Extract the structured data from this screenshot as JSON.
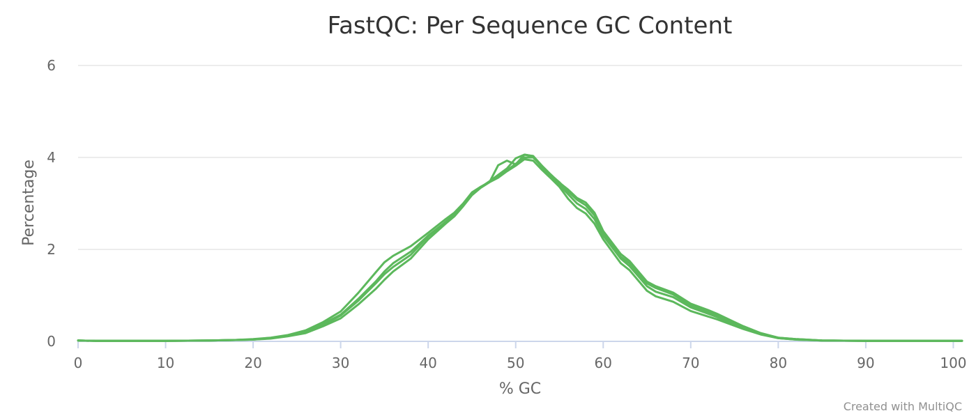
{
  "chart_data": {
    "type": "line",
    "title": "FastQC: Per Sequence GC Content",
    "xlabel": "% GC",
    "ylabel": "Percentage",
    "xlim": [
      0,
      101
    ],
    "ylim": [
      0,
      6
    ],
    "x_ticks": [
      0,
      10,
      20,
      30,
      40,
      50,
      60,
      70,
      80,
      90,
      100
    ],
    "y_ticks": [
      0,
      2,
      4,
      6
    ],
    "grid": true,
    "legend": "none",
    "line_color": "#5cb85c",
    "credit": "Created with MultiQC",
    "series": [
      {
        "x": [
          0,
          2,
          5,
          10,
          15,
          18,
          20,
          22,
          24,
          26,
          28,
          30,
          32,
          34,
          35,
          36,
          38,
          40,
          42,
          43,
          44,
          45,
          46,
          47,
          48,
          49,
          50,
          51,
          52,
          53,
          54,
          55,
          56,
          57,
          58,
          59,
          60,
          62,
          63,
          65,
          66,
          68,
          70,
          72,
          73,
          75,
          76,
          78,
          80,
          82,
          85,
          90,
          95,
          100,
          101
        ],
        "y": [
          0.02,
          0.01,
          0.01,
          0.01,
          0.02,
          0.03,
          0.05,
          0.08,
          0.14,
          0.24,
          0.42,
          0.65,
          1.05,
          1.5,
          1.72,
          1.86,
          2.07,
          2.36,
          2.66,
          2.8,
          3.0,
          3.24,
          3.36,
          3.46,
          3.83,
          3.93,
          3.85,
          4.06,
          4.03,
          3.82,
          3.63,
          3.45,
          3.3,
          3.12,
          3.02,
          2.8,
          2.4,
          1.9,
          1.75,
          1.3,
          1.2,
          1.06,
          0.82,
          0.68,
          0.6,
          0.42,
          0.33,
          0.18,
          0.08,
          0.05,
          0.02,
          0.01,
          0.01,
          0.01,
          0.01
        ]
      },
      {
        "x": [
          0,
          2,
          5,
          10,
          15,
          18,
          20,
          22,
          24,
          26,
          28,
          30,
          32,
          34,
          35,
          36,
          38,
          40,
          42,
          43,
          44,
          45,
          46,
          47,
          48,
          49,
          50,
          51,
          52,
          53,
          54,
          55,
          56,
          57,
          58,
          59,
          60,
          62,
          63,
          65,
          66,
          68,
          70,
          72,
          73,
          75,
          76,
          78,
          80,
          82,
          85,
          90,
          95,
          100,
          101
        ],
        "y": [
          0.02,
          0.01,
          0.01,
          0.01,
          0.02,
          0.03,
          0.04,
          0.07,
          0.12,
          0.21,
          0.38,
          0.58,
          0.92,
          1.3,
          1.52,
          1.7,
          1.95,
          2.3,
          2.6,
          2.76,
          2.98,
          3.22,
          3.36,
          3.47,
          3.6,
          3.72,
          3.86,
          4.0,
          4.0,
          3.8,
          3.62,
          3.46,
          3.26,
          3.08,
          2.96,
          2.74,
          2.36,
          1.84,
          1.7,
          1.26,
          1.16,
          1.02,
          0.78,
          0.64,
          0.57,
          0.4,
          0.31,
          0.17,
          0.08,
          0.05,
          0.02,
          0.01,
          0.01,
          0.01,
          0.01
        ]
      },
      {
        "x": [
          0,
          2,
          5,
          10,
          15,
          18,
          20,
          22,
          24,
          26,
          28,
          30,
          32,
          34,
          35,
          36,
          38,
          40,
          42,
          43,
          44,
          45,
          46,
          47,
          48,
          49,
          50,
          51,
          52,
          53,
          54,
          55,
          56,
          57,
          58,
          59,
          60,
          62,
          63,
          65,
          66,
          68,
          70,
          72,
          73,
          75,
          76,
          78,
          80,
          82,
          85,
          90,
          95,
          100,
          101
        ],
        "y": [
          0.02,
          0.01,
          0.01,
          0.01,
          0.02,
          0.03,
          0.04,
          0.06,
          0.11,
          0.18,
          0.33,
          0.5,
          0.8,
          1.14,
          1.34,
          1.52,
          1.8,
          2.22,
          2.56,
          2.72,
          2.94,
          3.18,
          3.34,
          3.46,
          3.56,
          3.7,
          3.82,
          3.96,
          3.93,
          3.73,
          3.55,
          3.36,
          3.1,
          2.9,
          2.78,
          2.56,
          2.22,
          1.7,
          1.55,
          1.1,
          0.98,
          0.86,
          0.66,
          0.54,
          0.48,
          0.34,
          0.27,
          0.15,
          0.07,
          0.04,
          0.02,
          0.01,
          0.01,
          0.01,
          0.01
        ]
      },
      {
        "x": [
          0,
          2,
          5,
          10,
          15,
          18,
          20,
          22,
          24,
          26,
          28,
          30,
          32,
          34,
          35,
          36,
          38,
          40,
          42,
          43,
          44,
          45,
          46,
          47,
          48,
          49,
          50,
          51,
          52,
          53,
          54,
          55,
          56,
          57,
          58,
          59,
          60,
          62,
          63,
          65,
          66,
          68,
          70,
          72,
          73,
          75,
          76,
          78,
          80,
          82,
          85,
          90,
          95,
          100,
          101
        ],
        "y": [
          0.02,
          0.01,
          0.01,
          0.01,
          0.02,
          0.03,
          0.04,
          0.07,
          0.12,
          0.2,
          0.36,
          0.56,
          0.88,
          1.26,
          1.46,
          1.62,
          1.88,
          2.28,
          2.6,
          2.75,
          2.97,
          3.2,
          3.35,
          3.48,
          3.62,
          3.76,
          3.98,
          4.06,
          4.03,
          3.78,
          3.58,
          3.4,
          3.2,
          3.0,
          2.88,
          2.66,
          2.3,
          1.8,
          1.64,
          1.2,
          1.08,
          0.96,
          0.74,
          0.6,
          0.53,
          0.37,
          0.29,
          0.16,
          0.07,
          0.04,
          0.02,
          0.01,
          0.01,
          0.01,
          0.01
        ]
      }
    ]
  }
}
